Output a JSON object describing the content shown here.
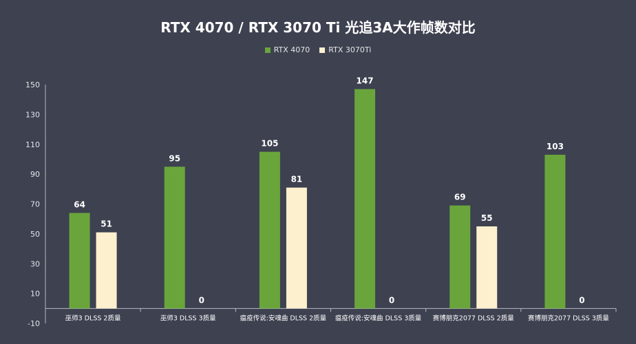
{
  "chart_data": {
    "type": "bar",
    "title": "RTX 4070 / RTX 3070 Ti 光追3A大作帧数对比",
    "categories": [
      "巫师3 DLSS 2质量",
      "巫师3 DLSS 3质量",
      "瘟疫传说:安魂曲 DLSS 2质量",
      "瘟疫传说:安魂曲 DLSS 3质量",
      "赛博朋克2077 DLSS 2质量",
      "赛博朋克2077 DLSS 3质量"
    ],
    "series": [
      {
        "name": "RTX 4070",
        "values": [
          64,
          95,
          105,
          147,
          69,
          103
        ],
        "color": "#6aa53c"
      },
      {
        "name": "RTX 3070Ti",
        "values": [
          51,
          0,
          81,
          0,
          55,
          0
        ],
        "color": "#fdf0cf"
      }
    ],
    "ylim": [
      -10,
      150
    ],
    "yticks": [
      -10,
      10,
      30,
      50,
      70,
      90,
      110,
      130,
      150
    ],
    "grid": false,
    "legend_position": "top-center"
  }
}
